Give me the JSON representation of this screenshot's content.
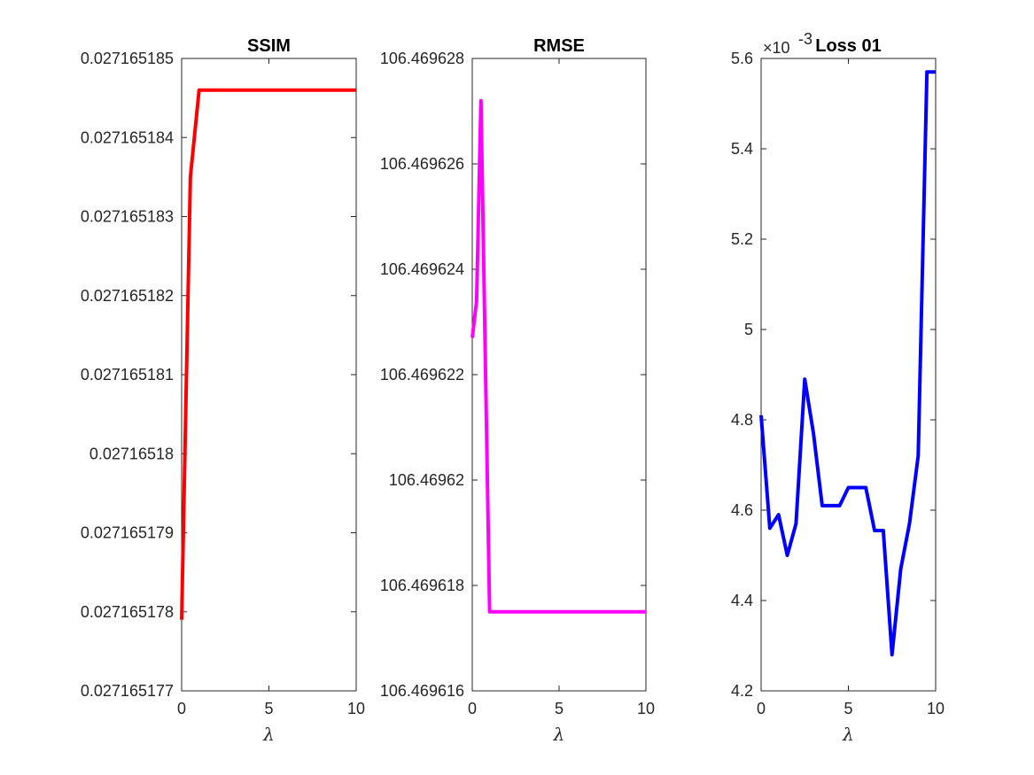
{
  "figure": {
    "background": "#ffffff",
    "axis_color": "#262626"
  },
  "chart_data": [
    {
      "type": "line",
      "title": "SSIM",
      "xlabel": "λ",
      "ylabel": "",
      "xlim": [
        0,
        10
      ],
      "ylim": [
        0.027165177,
        0.027165185
      ],
      "xticks": [
        0,
        5,
        10
      ],
      "xtick_labels": [
        "0",
        "5",
        "10"
      ],
      "yticks": [
        0.027165177,
        0.027165178,
        0.027165179,
        0.02716518,
        0.027165181,
        0.027165182,
        0.027165183,
        0.027165184,
        0.027165185
      ],
      "ytick_labels": [
        "0.027165177",
        "0.027165178",
        "0.027165179",
        "0.02716518",
        "0.027165181",
        "0.027165182",
        "0.027165183",
        "0.027165184",
        "0.027165185"
      ],
      "y_exponent": "",
      "grid": false,
      "series": [
        {
          "color": "#ff0000",
          "x": [
            0,
            0.5,
            1,
            1.5,
            2,
            2.5,
            3,
            3.5,
            4,
            4.5,
            5,
            5.5,
            6,
            6.5,
            7,
            7.5,
            8,
            8.5,
            9,
            9.5,
            10
          ],
          "y": [
            0.0271651779,
            0.0271651835,
            0.0271651846,
            0.0271651846,
            0.0271651846,
            0.0271651846,
            0.0271651846,
            0.0271651846,
            0.0271651846,
            0.0271651846,
            0.0271651846,
            0.0271651846,
            0.0271651846,
            0.0271651846,
            0.0271651846,
            0.0271651846,
            0.0271651846,
            0.0271651846,
            0.0271651846,
            0.0271651846,
            0.0271651846
          ]
        }
      ]
    },
    {
      "type": "line",
      "title": "RMSE",
      "xlabel": "λ",
      "ylabel": "",
      "xlim": [
        0,
        10
      ],
      "ylim": [
        106.469616,
        106.469628
      ],
      "xticks": [
        0,
        5,
        10
      ],
      "xtick_labels": [
        "0",
        "5",
        "10"
      ],
      "yticks": [
        106.469616,
        106.469618,
        106.46962,
        106.469622,
        106.469624,
        106.469626,
        106.469628
      ],
      "ytick_labels": [
        "106.469616",
        "106.469618",
        "106.46962",
        "106.469622",
        "106.469624",
        "106.469626",
        "106.469628"
      ],
      "y_exponent": "",
      "grid": false,
      "series": [
        {
          "color": "#ff00ff",
          "x": [
            0,
            0.25,
            0.5,
            1,
            1.5,
            2,
            2.5,
            3,
            3.5,
            4,
            4.5,
            5,
            5.5,
            6,
            6.5,
            7,
            7.5,
            8,
            8.5,
            9,
            9.5,
            10
          ],
          "y": [
            106.4696227,
            106.4696234,
            106.4696272,
            106.4696175,
            106.4696175,
            106.4696175,
            106.4696175,
            106.4696175,
            106.4696175,
            106.4696175,
            106.4696175,
            106.4696175,
            106.4696175,
            106.4696175,
            106.4696175,
            106.4696175,
            106.4696175,
            106.4696175,
            106.4696175,
            106.4696175,
            106.4696175,
            106.4696175
          ]
        }
      ]
    },
    {
      "type": "line",
      "title": "Loss 01",
      "xlabel": "λ",
      "ylabel": "",
      "xlim": [
        0,
        10
      ],
      "ylim": [
        4.2,
        5.6
      ],
      "xticks": [
        0,
        5,
        10
      ],
      "xtick_labels": [
        "0",
        "5",
        "10"
      ],
      "yticks": [
        4.2,
        4.4,
        4.6,
        4.8,
        5.0,
        5.2,
        5.4,
        5.6
      ],
      "ytick_labels": [
        "4.2",
        "4.4",
        "4.6",
        "4.8",
        "5",
        "5.2",
        "5.4",
        "5.6"
      ],
      "y_exponent": "-3",
      "y_exponent_base": "×10",
      "grid": false,
      "series": [
        {
          "color": "#0000ff",
          "x": [
            0,
            0.5,
            1,
            1.5,
            2,
            2.5,
            3,
            3.5,
            4,
            4.5,
            5,
            5.5,
            6,
            6.5,
            7,
            7.5,
            8,
            8.5,
            9,
            9.5,
            10
          ],
          "y": [
            4.81,
            4.56,
            4.59,
            4.5,
            4.57,
            4.89,
            4.77,
            4.61,
            4.61,
            4.61,
            4.65,
            4.65,
            4.65,
            4.555,
            4.555,
            4.28,
            4.47,
            4.57,
            4.72,
            5.57,
            5.57
          ]
        }
      ]
    }
  ]
}
